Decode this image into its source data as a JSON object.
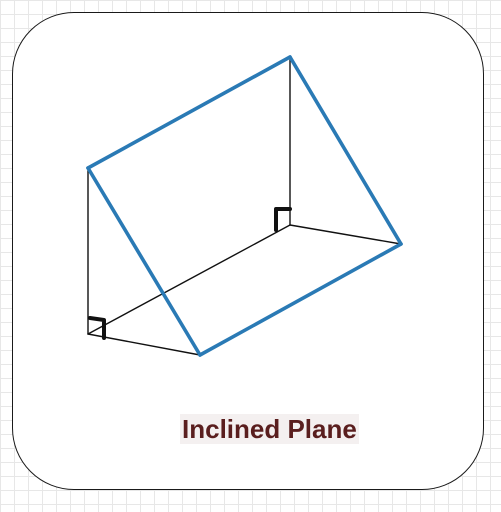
{
  "diagram": {
    "caption": "Inclined Plane",
    "colors": {
      "incline_edges": "#2a7ab5",
      "frame_edges": "#111111",
      "caption_text": "#5a1e1e",
      "card_border": "#1a1a1a",
      "grid": "#e7e7e7"
    },
    "icons": [
      "right-angle-marker-front",
      "right-angle-marker-back"
    ]
  }
}
